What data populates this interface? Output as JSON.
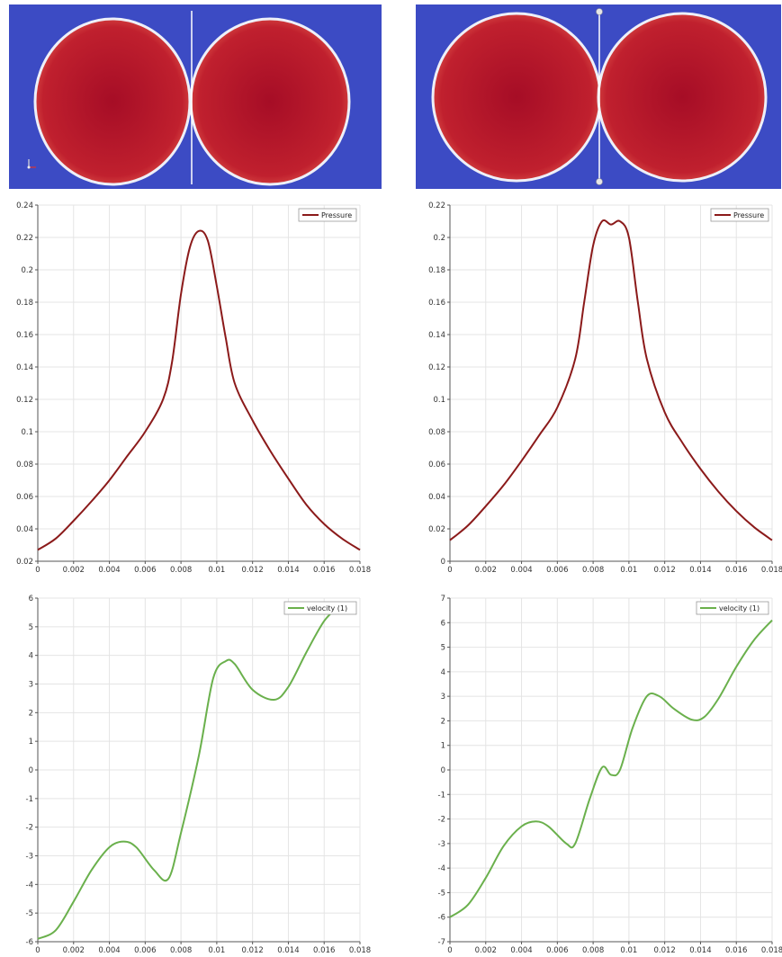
{
  "colors": {
    "background_blue": "#3c4bc4",
    "droplet_red": "#b0122a",
    "droplet_rim": "#eef0f8",
    "probe_line": "#ffffff",
    "pressure_line": "#8b1a1a",
    "velocity_line": "#6ab04c",
    "grid": "#e4e4e4",
    "axis": "#555555"
  },
  "panels": [
    {
      "id": "left",
      "probe_handles": false,
      "orientation_axes": true
    },
    {
      "id": "right",
      "probe_handles": true,
      "orientation_axes": false
    }
  ],
  "chart_data": [
    {
      "type": "line",
      "panel": "left",
      "legend": "Pressure",
      "color": "#8b1a1a",
      "xlim": [
        0,
        0.018
      ],
      "ylim": [
        0.02,
        0.24
      ],
      "xticks": [
        "0",
        "0.002",
        "0.004",
        "0.006",
        "0.008",
        "0.01",
        "0.012",
        "0.014",
        "0.016",
        "0.018"
      ],
      "yticks": [
        "0.02",
        "0.04",
        "0.06",
        "0.08",
        "0.1",
        "0.12",
        "0.14",
        "0.16",
        "0.18",
        "0.2",
        "0.22",
        "0.24"
      ],
      "series": [
        {
          "name": "Pressure",
          "x": [
            0,
            0.001,
            0.002,
            0.003,
            0.004,
            0.005,
            0.006,
            0.007,
            0.0075,
            0.008,
            0.0085,
            0.009,
            0.0095,
            0.01,
            0.0105,
            0.011,
            0.012,
            0.013,
            0.014,
            0.015,
            0.016,
            0.017,
            0.018
          ],
          "y": [
            0.027,
            0.034,
            0.045,
            0.057,
            0.07,
            0.085,
            0.1,
            0.12,
            0.143,
            0.185,
            0.214,
            0.224,
            0.218,
            0.19,
            0.158,
            0.13,
            0.107,
            0.088,
            0.071,
            0.055,
            0.043,
            0.034,
            0.027
          ]
        }
      ]
    },
    {
      "type": "line",
      "panel": "right",
      "legend": "Pressure",
      "color": "#8b1a1a",
      "xlim": [
        0,
        0.018
      ],
      "ylim": [
        0,
        0.22
      ],
      "xticks": [
        "0",
        "0.002",
        "0.004",
        "0.006",
        "0.008",
        "0.01",
        "0.012",
        "0.014",
        "0.016",
        "0.018"
      ],
      "yticks": [
        "0",
        "0.02",
        "0.04",
        "0.06",
        "0.08",
        "0.1",
        "0.12",
        "0.14",
        "0.16",
        "0.18",
        "0.2",
        "0.22"
      ],
      "series": [
        {
          "name": "Pressure",
          "x": [
            0,
            0.001,
            0.002,
            0.003,
            0.004,
            0.005,
            0.006,
            0.007,
            0.0075,
            0.008,
            0.0085,
            0.009,
            0.0095,
            0.01,
            0.0105,
            0.011,
            0.012,
            0.013,
            0.014,
            0.015,
            0.016,
            0.017,
            0.018
          ],
          "y": [
            0.013,
            0.022,
            0.034,
            0.047,
            0.062,
            0.078,
            0.095,
            0.125,
            0.16,
            0.195,
            0.21,
            0.208,
            0.21,
            0.2,
            0.16,
            0.125,
            0.092,
            0.073,
            0.057,
            0.043,
            0.031,
            0.021,
            0.013
          ]
        }
      ]
    },
    {
      "type": "line",
      "panel": "left",
      "legend": "velocity (1)",
      "color": "#6ab04c",
      "xlim": [
        0,
        0.018
      ],
      "ylim": [
        -6,
        6
      ],
      "xticks": [
        "0",
        "0.002",
        "0.004",
        "0.006",
        "0.008",
        "0.01",
        "0.012",
        "0.014",
        "0.016",
        "0.018"
      ],
      "yticks": [
        "-6",
        "-5",
        "-4",
        "-3",
        "-2",
        "-1",
        "0",
        "1",
        "2",
        "3",
        "4",
        "5",
        "6"
      ],
      "series": [
        {
          "name": "velocity (1)",
          "x": [
            0,
            0.001,
            0.002,
            0.003,
            0.004,
            0.0048,
            0.0055,
            0.0065,
            0.0073,
            0.008,
            0.009,
            0.0098,
            0.0105,
            0.011,
            0.012,
            0.0132,
            0.014,
            0.015,
            0.016,
            0.0168
          ],
          "y": [
            -5.9,
            -5.6,
            -4.6,
            -3.5,
            -2.7,
            -2.5,
            -2.7,
            -3.5,
            -3.8,
            -2.2,
            0.5,
            3.2,
            3.8,
            3.7,
            2.8,
            2.45,
            2.9,
            4.1,
            5.2,
            5.7
          ]
        }
      ]
    },
    {
      "type": "line",
      "panel": "right",
      "legend": "velocity (1)",
      "color": "#6ab04c",
      "xlim": [
        0,
        0.018
      ],
      "ylim": [
        -7,
        7
      ],
      "xticks": [
        "0",
        "0.002",
        "0.004",
        "0.006",
        "0.008",
        "0.01",
        "0.012",
        "0.014",
        "0.016",
        "0.018"
      ],
      "yticks": [
        "-7",
        "-6",
        "-5",
        "-4",
        "-3",
        "-2",
        "-1",
        "0",
        "1",
        "2",
        "3",
        "4",
        "5",
        "6",
        "7"
      ],
      "series": [
        {
          "name": "velocity (1)",
          "x": [
            0,
            0.001,
            0.002,
            0.003,
            0.004,
            0.0048,
            0.0055,
            0.0065,
            0.007,
            0.0078,
            0.0085,
            0.009,
            0.0095,
            0.0102,
            0.011,
            0.0117,
            0.0125,
            0.0135,
            0.0142,
            0.015,
            0.016,
            0.017,
            0.018
          ],
          "y": [
            -6.0,
            -5.5,
            -4.4,
            -3.1,
            -2.3,
            -2.1,
            -2.3,
            -3.0,
            -3.0,
            -1.2,
            0.1,
            -0.2,
            0.0,
            1.7,
            3.0,
            3.0,
            2.5,
            2.05,
            2.15,
            2.9,
            4.2,
            5.3,
            6.1
          ]
        }
      ]
    }
  ]
}
